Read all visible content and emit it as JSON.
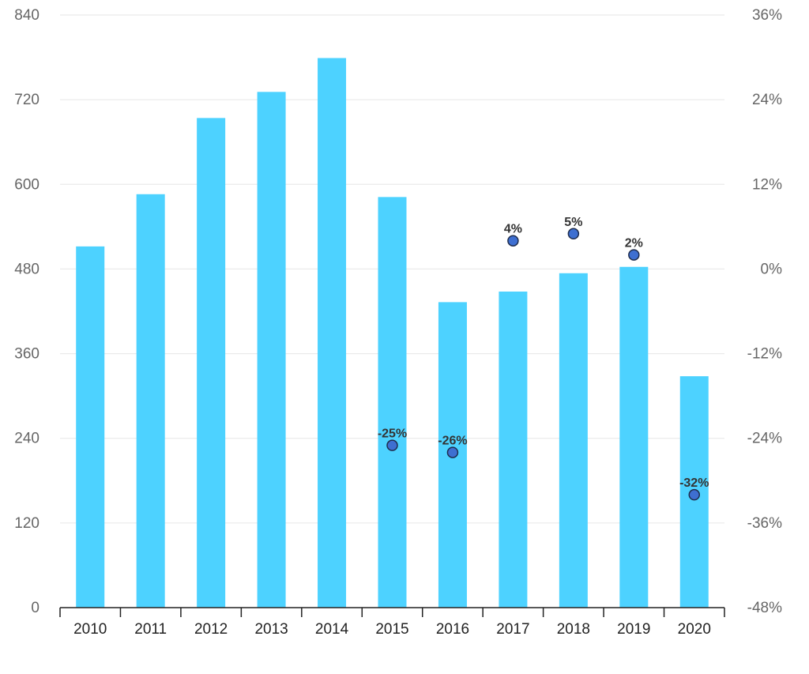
{
  "chart_data": {
    "type": "bar",
    "categories": [
      "2010",
      "2011",
      "2012",
      "2013",
      "2014",
      "2015",
      "2016",
      "2017",
      "2018",
      "2019",
      "2020"
    ],
    "series": [
      {
        "type": "bar",
        "axis": "left",
        "values": [
          512,
          586,
          694,
          731,
          779,
          582,
          433,
          448,
          474,
          483,
          328
        ],
        "color": "#4dd2ff"
      },
      {
        "type": "scatter",
        "axis": "right",
        "values": [
          null,
          null,
          null,
          null,
          null,
          -25,
          -26,
          4,
          5,
          2,
          -32
        ],
        "labels": [
          "",
          "",
          "",
          "",
          "",
          "-25%",
          "-26%",
          "4%",
          "5%",
          "2%",
          "-32%"
        ],
        "color": "#3e6fd1"
      }
    ],
    "left_axis": {
      "ylim": [
        0,
        840
      ],
      "ticks": [
        0,
        120,
        240,
        360,
        480,
        600,
        720,
        840
      ],
      "tick_labels": [
        "0",
        "120",
        "240",
        "360",
        "480",
        "600",
        "720",
        "840"
      ]
    },
    "right_axis": {
      "ylim": [
        -48,
        36
      ],
      "ticks": [
        -48,
        -36,
        -24,
        -12,
        0,
        12,
        24,
        36
      ],
      "tick_labels": [
        "-48%",
        "-36%",
        "-24%",
        "-12%",
        "0%",
        "12%",
        "24%",
        "36%"
      ]
    },
    "grid": true,
    "title": "",
    "xlabel": "",
    "ylabel": ""
  }
}
